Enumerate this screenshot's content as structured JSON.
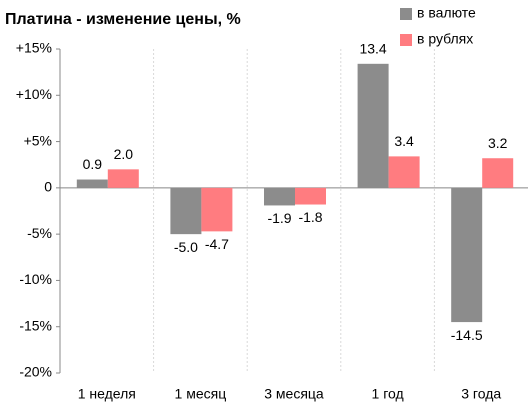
{
  "chart_data": {
    "type": "bar",
    "title": "Платина - изменение цены, %",
    "categories": [
      "1 неделя",
      "1 месяц",
      "3 месяца",
      "1 год",
      "3 года"
    ],
    "series": [
      {
        "name": "в валюте",
        "color": "#8c8c8c",
        "values": [
          0.9,
          -5.0,
          -1.9,
          13.4,
          -14.5
        ],
        "value_labels": [
          "0.9",
          "-5.0",
          "-1.9",
          "13.4",
          "-14.5"
        ]
      },
      {
        "name": "в рублях",
        "color": "#ff7c80",
        "values": [
          2.0,
          -4.7,
          -1.8,
          3.4,
          3.2
        ],
        "value_labels": [
          "2.0",
          "-4.7",
          "-1.8",
          "3.4",
          "3.2"
        ]
      }
    ],
    "ylim": [
      -20,
      15
    ],
    "yticks": [
      {
        "value": -20,
        "label": "-20%"
      },
      {
        "value": -15,
        "label": "-15%"
      },
      {
        "value": -10,
        "label": "-10%"
      },
      {
        "value": -5,
        "label": "-5%"
      },
      0,
      {
        "value": 5,
        "label": "+5%"
      },
      {
        "value": 10,
        "label": "+10%"
      },
      {
        "value": 15,
        "label": "+15%"
      }
    ],
    "grid": true,
    "legend": "top-right"
  }
}
